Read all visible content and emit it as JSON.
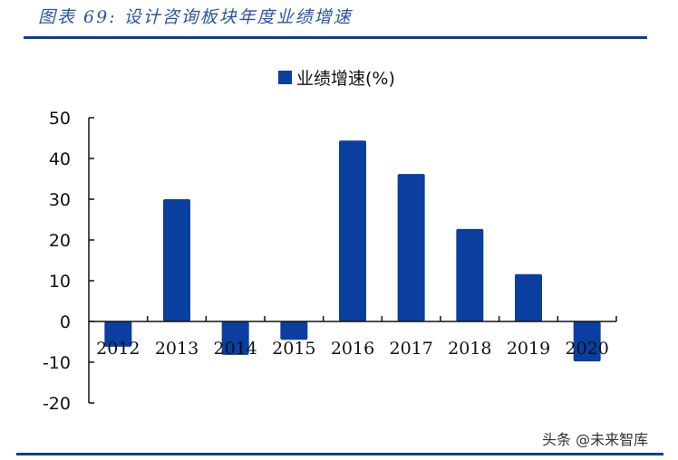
{
  "header": {
    "title": "图表 69: 设计咨询板块年度业绩增速"
  },
  "legend": {
    "label": "业绩增速(%)",
    "color": "#0a3fa0"
  },
  "watermark": "头条 @未来智库",
  "chart_data": {
    "type": "bar",
    "title": "设计咨询板块年度业绩增速",
    "categories": [
      "2012",
      "2013",
      "2014",
      "2015",
      "2016",
      "2017",
      "2018",
      "2019",
      "2020"
    ],
    "series": [
      {
        "name": "业绩增速(%)",
        "values": [
          -6.2,
          30.0,
          -8.2,
          -4.5,
          44.4,
          36.2,
          22.7,
          11.6,
          -9.8
        ],
        "color": "#0a3fa0"
      }
    ],
    "xlabel": "",
    "ylabel": "",
    "ylim": [
      -20,
      50
    ],
    "yticks": [
      50,
      40,
      30,
      20,
      10,
      0,
      -10,
      -20
    ],
    "grid": false,
    "legend_position": "top"
  }
}
